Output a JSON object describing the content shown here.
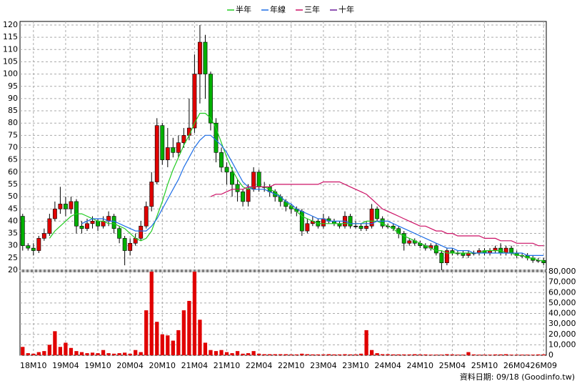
{
  "chart_data": [
    {
      "type": "candlestick",
      "categories": [
        null,
        null,
        "18M10",
        null,
        null,
        null,
        null,
        null,
        "19M04",
        null,
        null,
        null,
        null,
        null,
        "19M10",
        null,
        null,
        null,
        null,
        null,
        "20M04",
        null,
        null,
        null,
        null,
        null,
        "20M10",
        null,
        null,
        null,
        null,
        null,
        "21M04",
        null,
        null,
        null,
        null,
        null,
        "21M10",
        null,
        null,
        null,
        null,
        null,
        "22M04",
        null,
        null,
        null,
        null,
        null,
        "22M10",
        null,
        null,
        null,
        null,
        null,
        "23M04",
        null,
        null,
        null,
        null,
        null,
        "23M10",
        null,
        null,
        null,
        null,
        null,
        "24M04",
        null,
        null,
        null,
        null,
        null,
        "24M10",
        null,
        null,
        null,
        null,
        null,
        "25M04",
        null,
        null,
        null,
        null,
        null,
        "25M10",
        null,
        null,
        null,
        null,
        null,
        "26M04",
        null,
        null,
        null,
        null,
        "26M09"
      ],
      "open": [
        42,
        30,
        29,
        28,
        33,
        35,
        41,
        45,
        47,
        45,
        48,
        38,
        37,
        39,
        40,
        38,
        40,
        42,
        37,
        33,
        28,
        31,
        33,
        38,
        46,
        56,
        79,
        65,
        70,
        68,
        72,
        75,
        78,
        100,
        113,
        100,
        80,
        68,
        62,
        60,
        55,
        52,
        48,
        53,
        60,
        54,
        54,
        52,
        50,
        48,
        46,
        45,
        44,
        36,
        39,
        40,
        38,
        41,
        40,
        39,
        38,
        42,
        38,
        38,
        37,
        38,
        45,
        41,
        38,
        38,
        37,
        35,
        31,
        32,
        31,
        30,
        29,
        30,
        27,
        23,
        28,
        27,
        27,
        26,
        27,
        27,
        28,
        27,
        28,
        29,
        27,
        29,
        27,
        26,
        26,
        25,
        24,
        24
      ],
      "high": [
        43,
        31,
        31,
        34,
        37,
        43,
        48,
        54,
        50,
        50,
        49,
        40,
        41,
        42,
        41,
        42,
        44,
        43,
        38,
        34,
        33,
        35,
        40,
        48,
        60,
        82,
        80,
        78,
        74,
        75,
        78,
        90,
        108,
        120,
        116,
        101,
        82,
        70,
        64,
        62,
        57,
        53,
        55,
        62,
        61,
        56,
        55,
        53,
        51,
        49,
        47,
        46,
        45,
        41,
        42,
        41,
        43,
        42,
        41,
        40,
        44,
        43,
        40,
        39,
        40,
        47,
        46,
        42,
        39,
        39,
        38,
        36,
        33,
        33,
        32,
        31,
        31,
        31,
        28,
        29,
        29,
        28,
        28,
        28,
        28,
        29,
        29,
        29,
        30,
        31,
        30,
        30,
        28,
        27,
        27,
        26,
        25,
        25
      ],
      "low": [
        28,
        28,
        26,
        27,
        32,
        34,
        40,
        43,
        42,
        43,
        35,
        35,
        36,
        37,
        36,
        37,
        38,
        35,
        31,
        22,
        26,
        30,
        32,
        37,
        44,
        55,
        63,
        62,
        66,
        66,
        70,
        73,
        76,
        88,
        90,
        77,
        64,
        60,
        55,
        50,
        48,
        46,
        46,
        52,
        52,
        52,
        50,
        48,
        46,
        44,
        43,
        42,
        34,
        35,
        38,
        37,
        37,
        39,
        38,
        37,
        37,
        37,
        37,
        36,
        36,
        37,
        40,
        37,
        37,
        36,
        33,
        28,
        30,
        30,
        29,
        28,
        28,
        26,
        20,
        22,
        26,
        26,
        25,
        25,
        26,
        26,
        26,
        26,
        27,
        26,
        26,
        26,
        25,
        25,
        24,
        23,
        23,
        22
      ],
      "close": [
        30,
        29,
        28,
        33,
        35,
        41,
        45,
        47,
        45,
        48,
        38,
        37,
        39,
        40,
        38,
        40,
        42,
        37,
        33,
        28,
        31,
        33,
        38,
        46,
        56,
        79,
        65,
        70,
        68,
        72,
        75,
        78,
        100,
        113,
        100,
        80,
        68,
        62,
        60,
        55,
        52,
        48,
        53,
        60,
        54,
        54,
        52,
        50,
        48,
        46,
        45,
        44,
        36,
        39,
        40,
        38,
        41,
        40,
        39,
        38,
        42,
        38,
        38,
        37,
        38,
        45,
        41,
        38,
        38,
        37,
        35,
        31,
        32,
        31,
        30,
        29,
        30,
        27,
        23,
        28,
        27,
        27,
        26,
        27,
        27,
        28,
        27,
        28,
        29,
        27,
        29,
        27,
        26,
        26,
        25,
        24,
        24,
        23
      ],
      "up_color": "#e00000",
      "down_color": "#00b000",
      "series": [
        {
          "name": "半年",
          "color": "#22cc22",
          "values": [
            null,
            null,
            null,
            null,
            null,
            33,
            36,
            38,
            40,
            42,
            43,
            43,
            42,
            41,
            40,
            40,
            39,
            39,
            38,
            37,
            35,
            33,
            32,
            33,
            36,
            42,
            48,
            55,
            61,
            66,
            71,
            75,
            80,
            84,
            84,
            82,
            78,
            72,
            66,
            61,
            57,
            54,
            53,
            54,
            54,
            54,
            53,
            52,
            50,
            48,
            46,
            44,
            42,
            41,
            40,
            39,
            39,
            39,
            39,
            39,
            39,
            39,
            39,
            39,
            40,
            40,
            40,
            39,
            38,
            37,
            35,
            34,
            33,
            32,
            31,
            30,
            29,
            28,
            28,
            27,
            27,
            27,
            27,
            27,
            27,
            27,
            28,
            28,
            28,
            28,
            27,
            27,
            26,
            26,
            25,
            25,
            24,
            24
          ]
        },
        {
          "name": "年線",
          "color": "#1e6ee6",
          "values": [
            null,
            null,
            null,
            null,
            null,
            null,
            null,
            null,
            null,
            null,
            null,
            39,
            40,
            41,
            41,
            41,
            40,
            40,
            39,
            38,
            37,
            36,
            36,
            36,
            38,
            41,
            45,
            49,
            53,
            57,
            62,
            66,
            70,
            73,
            75,
            75,
            73,
            71,
            68,
            64,
            60,
            56,
            54,
            53,
            53,
            53,
            52,
            51,
            50,
            48,
            47,
            45,
            44,
            43,
            42,
            41,
            41,
            40,
            40,
            40,
            40,
            39,
            39,
            39,
            39,
            39,
            40,
            40,
            40,
            39,
            38,
            37,
            36,
            35,
            34,
            33,
            32,
            31,
            30,
            29,
            29,
            28,
            28,
            28,
            27,
            27,
            27,
            27,
            27,
            27,
            27,
            27,
            27,
            27,
            26,
            26,
            26,
            26
          ]
        },
        {
          "name": "三年",
          "color": "#cc1166",
          "values": [
            null,
            null,
            null,
            null,
            null,
            null,
            null,
            null,
            null,
            null,
            null,
            null,
            null,
            null,
            null,
            null,
            null,
            null,
            null,
            null,
            null,
            null,
            null,
            null,
            null,
            null,
            null,
            null,
            null,
            null,
            null,
            null,
            null,
            null,
            null,
            50,
            51,
            51,
            52,
            53,
            53,
            53,
            54,
            54,
            54,
            54,
            54,
            55,
            55,
            55,
            55,
            55,
            55,
            55,
            55,
            55,
            56,
            56,
            56,
            56,
            55,
            54,
            53,
            52,
            51,
            49,
            47,
            45,
            44,
            43,
            42,
            41,
            40,
            39,
            38,
            38,
            37,
            36,
            36,
            35,
            35,
            34,
            34,
            34,
            34,
            34,
            33,
            33,
            33,
            32,
            32,
            32,
            31,
            31,
            31,
            31,
            30,
            30
          ]
        },
        {
          "name": "十年",
          "color": "#6a1b9a",
          "values": [
            null,
            null,
            null,
            null,
            null,
            null,
            null,
            null,
            null,
            null,
            null,
            null,
            null,
            null,
            null,
            null,
            null,
            null,
            null,
            null,
            null,
            null,
            null,
            null,
            null,
            null,
            null,
            null,
            null,
            null,
            null,
            null,
            null,
            null,
            null,
            null,
            null,
            null,
            null,
            null,
            null,
            null,
            null,
            null,
            null,
            null,
            null,
            null,
            null,
            null,
            null,
            null,
            null,
            null,
            null,
            null,
            null,
            null,
            null,
            null,
            null,
            null,
            null,
            null,
            null,
            null,
            null,
            null,
            null,
            null,
            null,
            null,
            null,
            null,
            null,
            null,
            null,
            null,
            null,
            null,
            null,
            null,
            null,
            null,
            null,
            null,
            null,
            null,
            null,
            null,
            null,
            null,
            null,
            null,
            null,
            null,
            null,
            null
          ]
        }
      ],
      "ylim": [
        20,
        120
      ],
      "yticks": [
        20,
        25,
        30,
        35,
        40,
        45,
        50,
        55,
        60,
        65,
        70,
        75,
        80,
        85,
        90,
        95,
        100,
        105,
        110,
        115,
        120
      ],
      "grid": true,
      "legend": "top"
    },
    {
      "type": "bar",
      "values": [
        8000,
        2000,
        1500,
        3000,
        4000,
        10000,
        23000,
        8000,
        12000,
        7000,
        4000,
        3000,
        2000,
        2500,
        2000,
        5000,
        2000,
        1500,
        2000,
        2500,
        1500,
        5000,
        3000,
        43000,
        80000,
        32000,
        20000,
        19000,
        14000,
        24000,
        43000,
        52000,
        80000,
        34000,
        12000,
        5000,
        4000,
        5000,
        3000,
        2000,
        4000,
        1500,
        2000,
        4000,
        1500,
        1000,
        1000,
        1000,
        1000,
        1000,
        800,
        800,
        1500,
        1000,
        800,
        800,
        800,
        1000,
        800,
        800,
        1000,
        800,
        800,
        1500,
        24000,
        5000,
        2000,
        1000,
        1000,
        800,
        800,
        800,
        800,
        1000,
        800,
        800,
        600,
        600,
        600,
        1000,
        800,
        600,
        600,
        3000,
        800,
        600,
        600,
        600,
        800,
        800,
        1000,
        600,
        600,
        600,
        600,
        600,
        800,
        800
      ],
      "color": "#e00000",
      "ylim": [
        0,
        80000
      ],
      "yticks": [
        0,
        {
          "value": 10000,
          "label": "10,000"
        },
        {
          "value": 20000,
          "label": "20,000"
        },
        {
          "value": 30000,
          "label": "30,000"
        },
        {
          "value": 40000,
          "label": "40,000"
        },
        {
          "value": 50000,
          "label": "50,000"
        },
        {
          "value": 60000,
          "label": "60,000"
        },
        {
          "value": 70000,
          "label": "70,000"
        },
        {
          "value": 80000,
          "label": "80,000"
        }
      ],
      "grid": true,
      "note": "資料日期: 09/18 (Goodinfo.tw)"
    }
  ]
}
